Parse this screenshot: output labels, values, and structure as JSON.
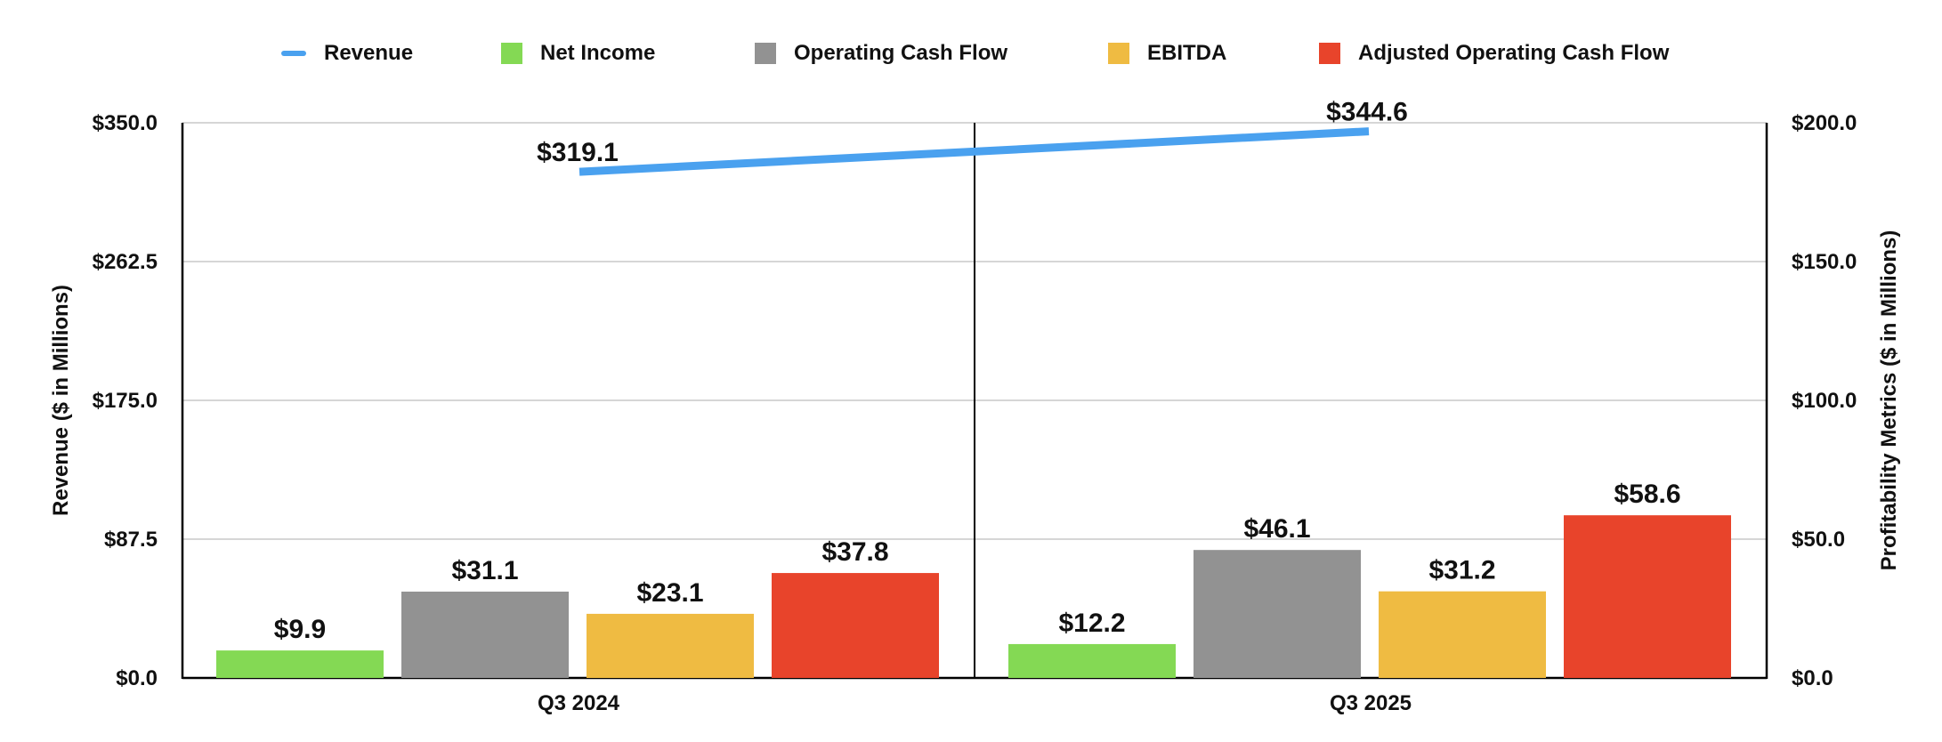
{
  "chart_data": {
    "type": "bar",
    "categories": [
      "Q3 2024",
      "Q3 2025"
    ],
    "series": [
      {
        "name": "Net Income",
        "type": "bar",
        "axis": "right",
        "color": "#84d954",
        "values": [
          9.9,
          12.2
        ],
        "labels": [
          "$9.9",
          "$12.2"
        ]
      },
      {
        "name": "Operating Cash Flow",
        "type": "bar",
        "axis": "right",
        "color": "#929292",
        "values": [
          31.1,
          46.1
        ],
        "labels": [
          "$31.1",
          "$46.1"
        ]
      },
      {
        "name": "EBITDA",
        "type": "bar",
        "axis": "right",
        "color": "#efbb42",
        "values": [
          23.1,
          31.2
        ],
        "labels": [
          "$23.1",
          "$31.2"
        ]
      },
      {
        "name": "Adjusted Operating Cash Flow",
        "type": "bar",
        "axis": "right",
        "color": "#e8442b",
        "values": [
          37.8,
          58.6
        ],
        "labels": [
          "$37.8",
          "$58.6"
        ]
      },
      {
        "name": "Revenue",
        "type": "line",
        "axis": "left",
        "color": "#4aa1ef",
        "values": [
          319.1,
          344.6
        ],
        "labels": [
          "$319.1",
          "$344.6"
        ]
      }
    ],
    "ylabel": "Revenue ($ in Millions)",
    "y2label": "Profitability Metrics ($ in Millions)",
    "ylim": [
      0,
      350
    ],
    "y2lim": [
      0,
      200
    ],
    "yticks": [
      "$0.0",
      "$87.5",
      "$175.0",
      "$262.5",
      "$350.0"
    ],
    "y2ticks": [
      "$0.0",
      "$50.0",
      "$100.0",
      "$150.0",
      "$200.0"
    ],
    "grid": true,
    "legend": "top-center"
  }
}
